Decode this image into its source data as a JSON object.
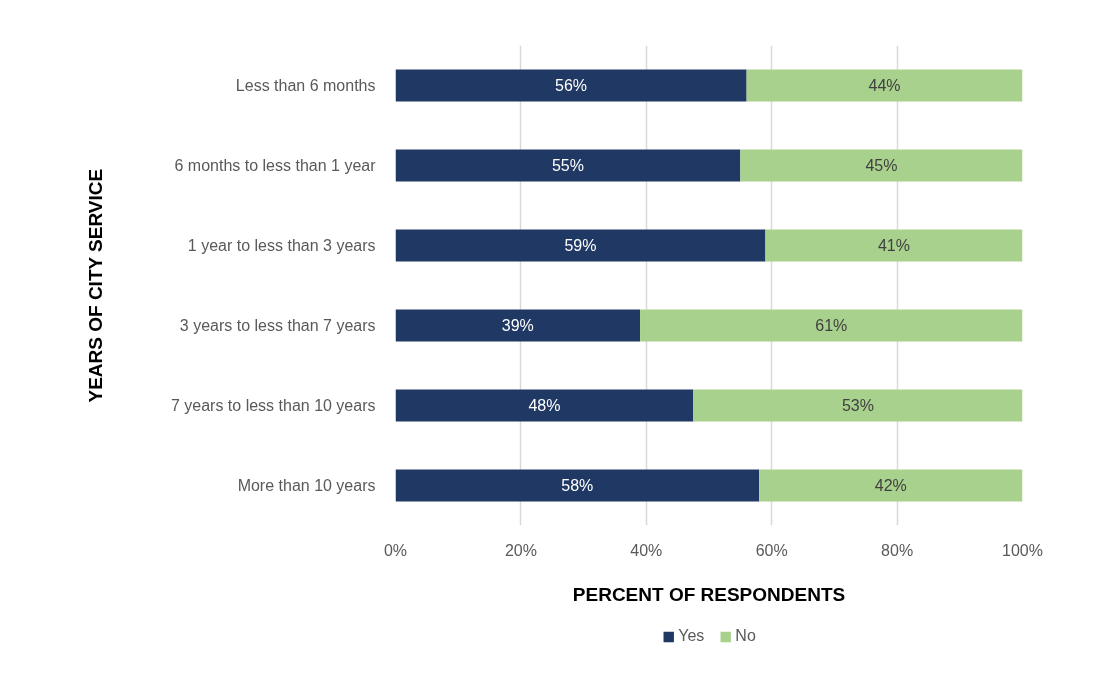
{
  "chart_data": {
    "type": "bar",
    "orientation": "horizontal",
    "stacked": true,
    "categories": [
      "Less than 6 months",
      "6 months to less than 1 year",
      "1 year to less than 3 years",
      "3 years to less than 7 years",
      "7 years to less than 10 years",
      "More than 10 years"
    ],
    "series": [
      {
        "name": "Yes",
        "color": "#203864",
        "values": [
          56,
          55,
          59,
          39,
          47.5,
          58
        ],
        "value_labels": [
          "56%",
          "55%",
          "59%",
          "39%",
          "48%",
          "58%"
        ]
      },
      {
        "name": "No",
        "color": "#a9d18e",
        "values": [
          44,
          45,
          41,
          61,
          52.5,
          42
        ],
        "value_labels": [
          "44%",
          "45%",
          "41%",
          "61%",
          "53%",
          "42%"
        ]
      }
    ],
    "xlim": [
      0,
      100
    ],
    "xticks": [
      {
        "value": 0,
        "label": "0%"
      },
      {
        "value": 20,
        "label": "20%"
      },
      {
        "value": 40,
        "label": "40%"
      },
      {
        "value": 60,
        "label": "60%"
      },
      {
        "value": 80,
        "label": "80%"
      },
      {
        "value": 100,
        "label": "100%"
      }
    ],
    "xlabel": "PERCENT OF RESPONDENTS",
    "ylabel": "YEARS OF CITY SERVICE",
    "grid": "x",
    "legend": "bottom"
  }
}
